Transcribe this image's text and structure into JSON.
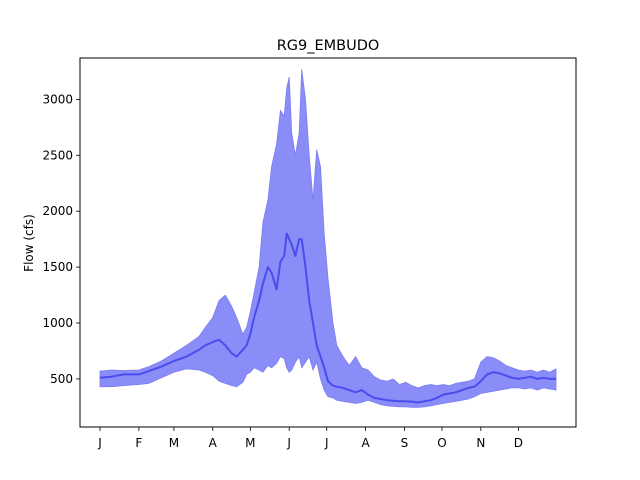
{
  "chart_data": {
    "type": "area",
    "title": "RG9_EMBUDO",
    "xlabel": "",
    "ylabel": "Flow (cfs)",
    "x_ticks": [
      "J",
      "F",
      "M",
      "A",
      "M",
      "J",
      "J",
      "A",
      "S",
      "O",
      "N",
      "D"
    ],
    "x_tick_days": [
      1,
      32,
      60,
      91,
      121,
      152,
      182,
      213,
      244,
      274,
      305,
      335
    ],
    "xlim": [
      -15,
      381
    ],
    "y_ticks": [
      500,
      1000,
      1500,
      2000,
      2500,
      3000
    ],
    "ylim": [
      70,
      3370
    ],
    "grid": false,
    "legend": "none",
    "colors": {
      "band": "#8a8cf7",
      "band_edge": "#7b7df2",
      "median": "#4a4ded"
    },
    "series": [
      {
        "role": "band",
        "x": [
          1,
          10,
          20,
          32,
          40,
          50,
          60,
          70,
          80,
          85,
          91,
          96,
          101,
          106,
          110,
          115,
          118,
          121,
          124,
          128,
          131,
          135,
          138,
          142,
          145,
          148,
          150,
          152,
          154,
          157,
          160,
          162,
          165,
          168,
          171,
          174,
          177,
          180,
          183,
          187,
          190,
          195,
          200,
          205,
          210,
          215,
          220,
          225,
          230,
          235,
          240,
          245,
          250,
          255,
          260,
          265,
          270,
          275,
          280,
          285,
          290,
          295,
          300,
          305,
          310,
          315,
          320,
          325,
          330,
          335,
          340,
          345,
          350,
          355,
          360,
          365
        ],
        "upper": [
          570,
          580,
          575,
          580,
          610,
          660,
          730,
          800,
          880,
          960,
          1050,
          1200,
          1250,
          1150,
          1050,
          900,
          960,
          1100,
          1270,
          1500,
          1900,
          2100,
          2400,
          2600,
          2900,
          2850,
          3100,
          3200,
          2700,
          2500,
          2700,
          3270,
          3000,
          2500,
          2100,
          2550,
          2400,
          1800,
          1400,
          1000,
          800,
          700,
          620,
          700,
          600,
          580,
          520,
          490,
          480,
          500,
          450,
          470,
          440,
          420,
          440,
          450,
          440,
          450,
          440,
          460,
          470,
          480,
          500,
          650,
          700,
          690,
          660,
          620,
          600,
          580,
          570,
          580,
          560,
          580,
          560,
          590
        ],
        "lower": [
          430,
          430,
          440,
          450,
          460,
          510,
          560,
          590,
          580,
          560,
          530,
          480,
          460,
          440,
          430,
          470,
          540,
          560,
          600,
          580,
          560,
          620,
          600,
          640,
          700,
          680,
          600,
          560,
          580,
          650,
          700,
          600,
          650,
          700,
          580,
          650,
          500,
          400,
          340,
          330,
          310,
          300,
          290,
          280,
          290,
          310,
          290,
          270,
          260,
          255,
          250,
          250,
          245,
          245,
          250,
          260,
          270,
          280,
          290,
          300,
          310,
          320,
          340,
          370,
          380,
          390,
          400,
          410,
          420,
          420,
          410,
          420,
          400,
          420,
          410,
          400
        ],
        "median": [
          510,
          520,
          540,
          540,
          570,
          610,
          660,
          700,
          760,
          800,
          830,
          850,
          800,
          730,
          700,
          760,
          800,
          900,
          1050,
          1200,
          1350,
          1500,
          1450,
          1300,
          1550,
          1600,
          1800,
          1750,
          1700,
          1600,
          1750,
          1750,
          1500,
          1200,
          1000,
          800,
          700,
          600,
          480,
          440,
          430,
          420,
          400,
          380,
          400,
          360,
          330,
          320,
          310,
          305,
          300,
          300,
          295,
          290,
          300,
          310,
          330,
          360,
          370,
          380,
          400,
          420,
          430,
          480,
          540,
          560,
          550,
          530,
          510,
          500,
          510,
          520,
          500,
          510,
          500,
          500
        ]
      }
    ]
  }
}
